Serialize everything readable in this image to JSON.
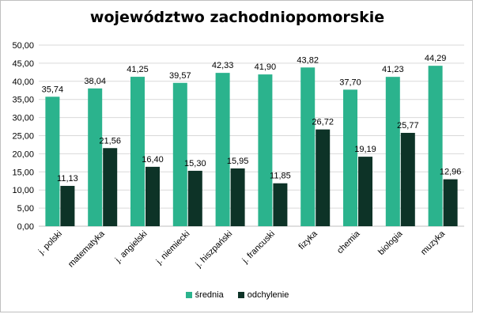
{
  "chart_data": {
    "type": "bar",
    "title": "województwo zachodniopomorskie",
    "categories": [
      "j. polski",
      "matematyka",
      "j. angielski",
      "j. niemiecki",
      "j. hiszpański",
      "j. francuski",
      "fizyka",
      "chemia",
      "biologia",
      "muzyka"
    ],
    "series": [
      {
        "name": "średnia",
        "color": "#2bb38d",
        "values": [
          35.74,
          38.04,
          41.25,
          39.57,
          42.33,
          41.9,
          43.82,
          37.7,
          41.23,
          44.29
        ],
        "labels": [
          "35,74",
          "38,04",
          "41,25",
          "39,57",
          "42,33",
          "41,90",
          "43,82",
          "37,70",
          "41,23",
          "44,29"
        ]
      },
      {
        "name": "odchylenie",
        "color": "#0d3327",
        "values": [
          11.13,
          21.56,
          16.4,
          15.3,
          15.95,
          11.85,
          26.72,
          19.19,
          25.77,
          12.96
        ],
        "labels": [
          "11,13",
          "21,56",
          "16,40",
          "15,30",
          "15,95",
          "11,85",
          "26,72",
          "19,19",
          "25,77",
          "12,96"
        ]
      }
    ],
    "ylim": [
      0,
      50
    ],
    "yticks": [
      "0,00",
      "5,00",
      "10,00",
      "15,00",
      "20,00",
      "25,00",
      "30,00",
      "35,00",
      "40,00",
      "45,00",
      "50,00"
    ],
    "grid": true,
    "legend_position": "bottom"
  }
}
